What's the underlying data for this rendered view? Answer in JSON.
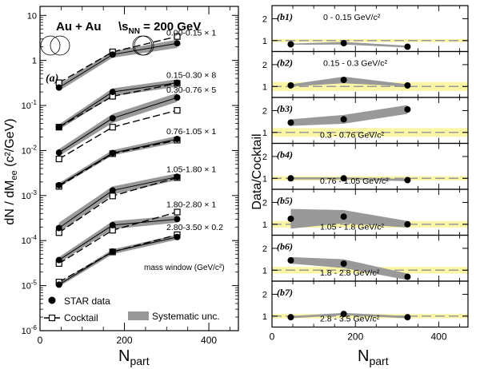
{
  "chart_data": [
    {
      "type": "line",
      "panel_label": "(a)",
      "title": "Au + Au",
      "energy_label_prefix": "\\s",
      "energy_label_sub": "NN",
      "energy_label_suffix": " = 200 GeV",
      "ylabel": "dN / dM",
      "ylabel_sub": "ee",
      "ylabel_unit": " (c²/GeV)",
      "xlabel": "N",
      "xlabel_sub": "part",
      "xlim": [
        0,
        470
      ],
      "ylim_log10": [
        -6,
        1.2
      ],
      "yscale": "log",
      "xticks": [
        0,
        200,
        400
      ],
      "yticks": [
        {
          "label": "10",
          "exp": "-6",
          "value": 1e-06
        },
        {
          "label": "10",
          "exp": "-5",
          "value": 1e-05
        },
        {
          "label": "10",
          "exp": "-4",
          "value": 0.0001
        },
        {
          "label": "10",
          "exp": "-3",
          "value": 0.001
        },
        {
          "label": "10",
          "exp": "-2",
          "value": 0.01
        },
        {
          "label": "10",
          "exp": "-1",
          "value": 0.1
        },
        {
          "label": "1",
          "exp": "",
          "value": 1
        },
        {
          "label": "10",
          "exp": "",
          "value": 10
        }
      ],
      "x": [
        45,
        172,
        325
      ],
      "series": [
        {
          "name": "0.00-0.15 × 1",
          "data": [
            0.25,
            1.35,
            2.4
          ],
          "cocktail": [
            0.32,
            1.55,
            3.4
          ],
          "sys_lo": [
            0.21,
            1.15,
            1.9
          ],
          "sys_hi": [
            0.3,
            1.6,
            2.9
          ]
        },
        {
          "name": "0.15-0.30 × 8",
          "data": [
            0.033,
            0.2,
            0.32
          ],
          "cocktail": [
            0.033,
            0.16,
            0.31
          ],
          "sys_lo": [
            0.029,
            0.16,
            0.26
          ],
          "sys_hi": [
            0.038,
            0.24,
            0.38
          ]
        },
        {
          "name": "0.30-0.76 × 5",
          "data": [
            0.009,
            0.052,
            0.15
          ],
          "cocktail": [
            0.0065,
            0.033,
            0.078
          ],
          "sys_lo": [
            0.0075,
            0.041,
            0.12
          ],
          "sys_hi": [
            0.0108,
            0.065,
            0.19
          ]
        },
        {
          "name": "0.76-1.05 × 1",
          "data": [
            0.0017,
            0.0088,
            0.018
          ],
          "cocktail": [
            0.0016,
            0.0085,
            0.017
          ],
          "sys_lo": [
            0.00155,
            0.0078,
            0.015
          ],
          "sys_hi": [
            0.0019,
            0.0102,
            0.021
          ]
        },
        {
          "name": "1.05-1.80 × 1",
          "data": [
            0.00019,
            0.0013,
            0.0026
          ],
          "cocktail": [
            0.00015,
            0.00098,
            0.0025
          ],
          "sys_lo": [
            0.00015,
            0.00105,
            0.0022
          ],
          "sys_hi": [
            0.00025,
            0.0016,
            0.0031
          ]
        },
        {
          "name": "1.80-2.80 × 1",
          "data": [
            3.7e-05,
            0.00022,
            0.0003
          ],
          "cocktail": [
            3.1e-05,
            0.00017,
            0.00043
          ],
          "sys_lo": [
            3.2e-05,
            0.00018,
            0.00025
          ],
          "sys_hi": [
            4.3e-05,
            0.00027,
            0.00036
          ]
        },
        {
          "name": "2.80-3.50 × 0.2",
          "data": [
            1.05e-05,
            5.7e-05,
            0.00012
          ],
          "cocktail": [
            1.2e-05,
            5.6e-05,
            0.000135
          ],
          "sys_lo": [
            9.5e-06,
            5e-05,
            0.000105
          ],
          "sys_hi": [
            1.15e-05,
            6.4e-05,
            0.000135
          ]
        }
      ],
      "legend_header": "mass window (GeV/c²)",
      "legend": {
        "data": "STAR data",
        "cocktail": "Cocktail",
        "sys": "Systematic unc."
      }
    },
    {
      "type": "line",
      "ylabel": "Data/Cocktail",
      "xlabel": "N",
      "xlabel_sub": "part",
      "xlim": [
        0,
        470
      ],
      "xticks": [
        0,
        200,
        400
      ],
      "x": [
        45,
        172,
        325
      ],
      "panels": [
        {
          "label": "(b1)",
          "text": "0 - 0.15 GeV/c²",
          "ylim": [
            0.5,
            2.6
          ],
          "yticks": [
            1,
            2
          ],
          "band": [
            0.93,
            1.07
          ],
          "values": [
            0.83,
            0.88,
            0.72
          ],
          "sys_lo": [
            0.81,
            0.82,
            0.68
          ],
          "sys_hi": [
            0.86,
            0.94,
            0.77
          ]
        },
        {
          "label": "(b2)",
          "text": "0.15 - 0.3 GeV/c²",
          "ylim": [
            0.5,
            2.6
          ],
          "yticks": [
            1,
            2
          ],
          "band": [
            0.8,
            1.2
          ],
          "values": [
            1.05,
            1.3,
            1.05
          ],
          "sys_lo": [
            1.0,
            1.15,
            1.0
          ],
          "sys_hi": [
            1.1,
            1.45,
            1.1
          ]
        },
        {
          "label": "(b3)",
          "text": "0.3 - 0.76 GeV/c²",
          "ylim": [
            0.5,
            2.6
          ],
          "yticks": [
            1,
            2
          ],
          "band": [
            0.8,
            1.2
          ],
          "values": [
            1.45,
            1.6,
            2.05
          ],
          "sys_lo": [
            1.3,
            1.4,
            1.85
          ],
          "sys_hi": [
            1.6,
            1.8,
            2.25
          ]
        },
        {
          "label": "(b4)",
          "text": "0.76 - 1.05 GeV/c²",
          "ylim": [
            0.5,
            2.6
          ],
          "yticks": [
            1,
            2
          ],
          "band": [
            0.9,
            1.1
          ],
          "values": [
            1.0,
            1.0,
            0.92
          ],
          "sys_lo": [
            0.95,
            0.95,
            0.87
          ],
          "sys_hi": [
            1.05,
            1.05,
            0.97
          ]
        },
        {
          "label": "(b5)",
          "text": "1.05 - 1.8 GeV/c²",
          "ylim": [
            0.5,
            2.6
          ],
          "yticks": [
            1,
            2
          ],
          "band": [
            0.85,
            1.15
          ],
          "values": [
            1.25,
            1.35,
            1.0
          ],
          "sys_lo": [
            0.8,
            1.05,
            0.85
          ],
          "sys_hi": [
            1.7,
            1.65,
            1.15
          ]
        },
        {
          "label": "(b6)",
          "text": "1.8 - 2.8 GeV/c²",
          "ylim": [
            0.5,
            2.6
          ],
          "yticks": [
            1,
            2
          ],
          "band": [
            0.85,
            1.15
          ],
          "values": [
            1.45,
            1.3,
            0.7
          ],
          "sys_lo": [
            1.3,
            1.1,
            0.55
          ],
          "sys_hi": [
            1.6,
            1.5,
            0.85
          ]
        },
        {
          "label": "(b7)",
          "text": "2.8 - 3.5 GeV/c²",
          "ylim": [
            0.5,
            2.6
          ],
          "yticks": [
            1,
            2
          ],
          "band": [
            0.9,
            1.1
          ],
          "values": [
            0.95,
            1.1,
            0.95
          ],
          "sys_lo": [
            0.9,
            1.05,
            0.9
          ],
          "sys_hi": [
            1.0,
            1.15,
            1.0
          ]
        }
      ]
    }
  ]
}
